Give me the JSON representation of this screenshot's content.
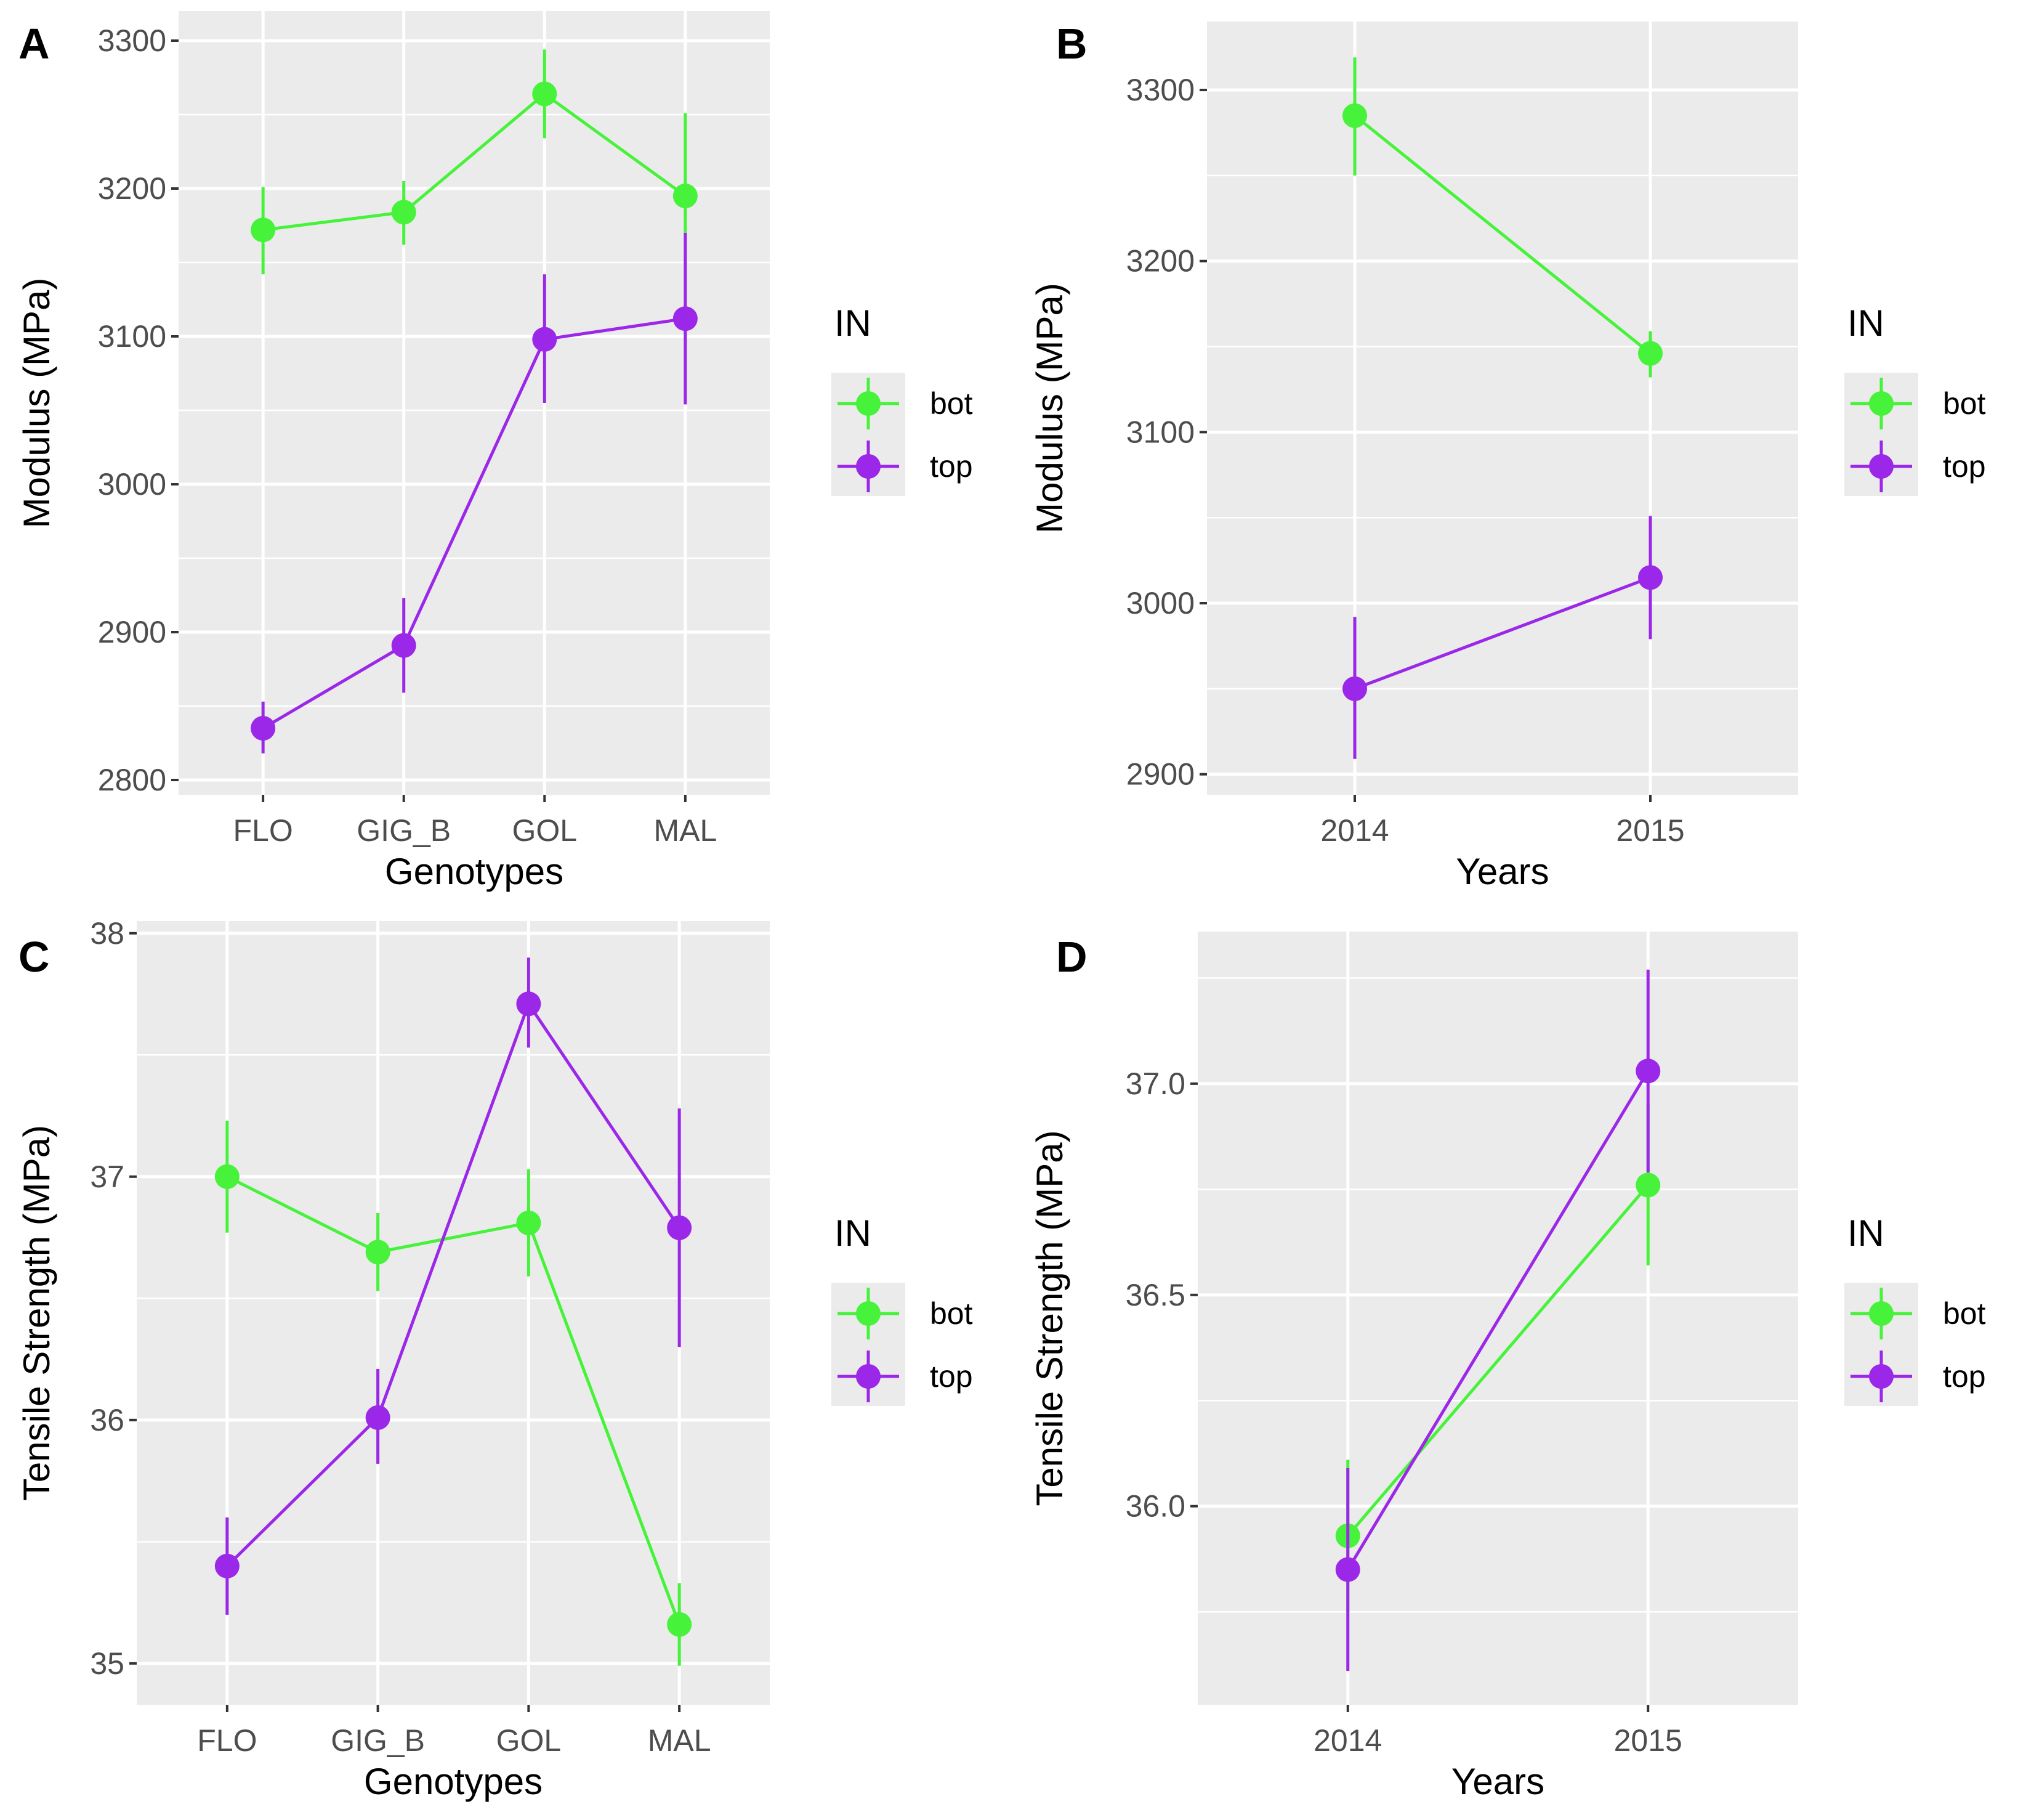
{
  "colors": {
    "panel_bg": "#ebebeb",
    "grid": "#ffffff",
    "bot": "#47f23a",
    "top": "#9b27e8",
    "tick_text": "#4d4d4d"
  },
  "chart_data": [
    {
      "id": "A",
      "tag": "A",
      "type": "line",
      "xlabel": "Genotypes",
      "ylabel": "Modulus (MPa)",
      "categories": [
        "FLO",
        "GIG_B",
        "GOL",
        "MAL"
      ],
      "ylim": [
        2790,
        3320
      ],
      "yticks": [
        2800,
        2900,
        3000,
        3100,
        3200,
        3300
      ],
      "ytick_labels": [
        "2800",
        "2900",
        "3000",
        "3100",
        "3200",
        "3300"
      ],
      "legend": {
        "title": "IN",
        "position": "right",
        "entries": [
          "bot",
          "top"
        ]
      },
      "series": [
        {
          "name": "bot",
          "values": [
            3172,
            3184,
            3264,
            3195
          ],
          "lower": [
            3142,
            3162,
            3234,
            3169
          ],
          "upper": [
            3201,
            3205,
            3294,
            3251
          ]
        },
        {
          "name": "top",
          "values": [
            2835,
            2891,
            3098,
            3112
          ],
          "lower": [
            2818,
            2859,
            3055,
            3054
          ],
          "upper": [
            2853,
            2923,
            3142,
            3170
          ]
        }
      ]
    },
    {
      "id": "B",
      "tag": "B",
      "type": "line",
      "xlabel": "Years",
      "ylabel": "Modulus (MPa)",
      "categories": [
        "2014",
        "2015"
      ],
      "ylim": [
        2888,
        3340
      ],
      "yticks": [
        2900,
        3000,
        3100,
        3200,
        3300
      ],
      "ytick_labels": [
        "2900",
        "3000",
        "3100",
        "3200",
        "3300"
      ],
      "legend": {
        "title": "IN",
        "position": "right",
        "entries": [
          "bot",
          "top"
        ]
      },
      "series": [
        {
          "name": "bot",
          "values": [
            3285,
            3146
          ],
          "lower": [
            3250,
            3132
          ],
          "upper": [
            3319,
            3159
          ]
        },
        {
          "name": "top",
          "values": [
            2950,
            3015
          ],
          "lower": [
            2909,
            2979
          ],
          "upper": [
            2992,
            3051
          ]
        }
      ]
    },
    {
      "id": "C",
      "tag": "C",
      "type": "line",
      "xlabel": "Genotypes",
      "ylabel": "Tensile Strength (MPa)",
      "categories": [
        "FLO",
        "GIG_B",
        "GOL",
        "MAL"
      ],
      "ylim": [
        34.83,
        38.05
      ],
      "yticks": [
        35,
        36,
        37,
        38
      ],
      "ytick_labels": [
        "35",
        "36",
        "37",
        "38"
      ],
      "legend": {
        "title": "IN",
        "position": "right",
        "entries": [
          "bot",
          "top"
        ]
      },
      "series": [
        {
          "name": "bot",
          "values": [
            37.0,
            36.69,
            36.81,
            35.16
          ],
          "lower": [
            36.77,
            36.53,
            36.59,
            34.99
          ],
          "upper": [
            37.23,
            36.85,
            37.03,
            35.33
          ]
        },
        {
          "name": "top",
          "values": [
            35.4,
            36.01,
            37.71,
            36.79
          ],
          "lower": [
            35.2,
            35.82,
            37.53,
            36.3
          ],
          "upper": [
            35.6,
            36.21,
            37.9,
            37.28
          ]
        }
      ]
    },
    {
      "id": "D",
      "tag": "D",
      "type": "line",
      "xlabel": "Years",
      "ylabel": "Tensile Strength (MPa)",
      "categories": [
        "2014",
        "2015"
      ],
      "ylim": [
        35.53,
        37.36
      ],
      "yticks": [
        36.0,
        36.5,
        37.0
      ],
      "ytick_labels": [
        "36.0",
        "36.5",
        "37.0"
      ],
      "legend": {
        "title": "IN",
        "position": "right",
        "entries": [
          "bot",
          "top"
        ]
      },
      "series": [
        {
          "name": "bot",
          "values": [
            35.93,
            36.76
          ],
          "lower": [
            35.75,
            36.57
          ],
          "upper": [
            36.11,
            36.95
          ]
        },
        {
          "name": "top",
          "values": [
            35.85,
            37.03
          ],
          "lower": [
            35.61,
            36.79
          ],
          "upper": [
            36.09,
            37.27
          ]
        }
      ]
    }
  ]
}
